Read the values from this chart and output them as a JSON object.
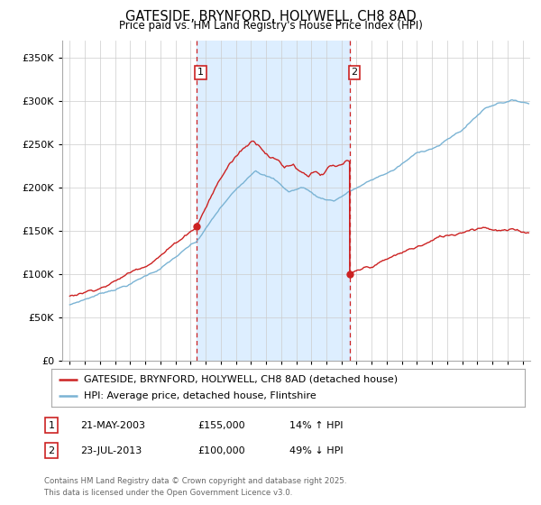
{
  "title": "GATESIDE, BRYNFORD, HOLYWELL, CH8 8AD",
  "subtitle": "Price paid vs. HM Land Registry's House Price Index (HPI)",
  "hpi_color": "#7ab3d4",
  "price_color": "#cc2222",
  "marker1_date_x": 2003.38,
  "marker1_price": 155000,
  "marker2_date_x": 2013.55,
  "marker2_price": 100000,
  "ylim": [
    0,
    370000
  ],
  "xlim_start": 1994.5,
  "xlim_end": 2025.5,
  "yticks": [
    0,
    50000,
    100000,
    150000,
    200000,
    250000,
    300000,
    350000
  ],
  "ytick_labels": [
    "£0",
    "£50K",
    "£100K",
    "£150K",
    "£200K",
    "£250K",
    "£300K",
    "£350K"
  ],
  "xticks": [
    1995,
    1996,
    1997,
    1998,
    1999,
    2000,
    2001,
    2002,
    2003,
    2004,
    2005,
    2006,
    2007,
    2008,
    2009,
    2010,
    2011,
    2012,
    2013,
    2014,
    2015,
    2016,
    2017,
    2018,
    2019,
    2020,
    2021,
    2022,
    2023,
    2024,
    2025
  ],
  "legend_label_price": "GATESIDE, BRYNFORD, HOLYWELL, CH8 8AD (detached house)",
  "legend_label_hpi": "HPI: Average price, detached house, Flintshire",
  "footnote_line1": "Contains HM Land Registry data © Crown copyright and database right 2025.",
  "footnote_line2": "This data is licensed under the Open Government Licence v3.0.",
  "table_rows": [
    {
      "num": "1",
      "date": "21-MAY-2003",
      "price": "£155,000",
      "hpi": "14% ↑ HPI"
    },
    {
      "num": "2",
      "date": "23-JUL-2013",
      "price": "£100,000",
      "hpi": "49% ↓ HPI"
    }
  ],
  "background_color": "#ffffff",
  "plot_bg_color": "#ffffff",
  "shade_color": "#ddeeff",
  "grid_color": "#cccccc"
}
